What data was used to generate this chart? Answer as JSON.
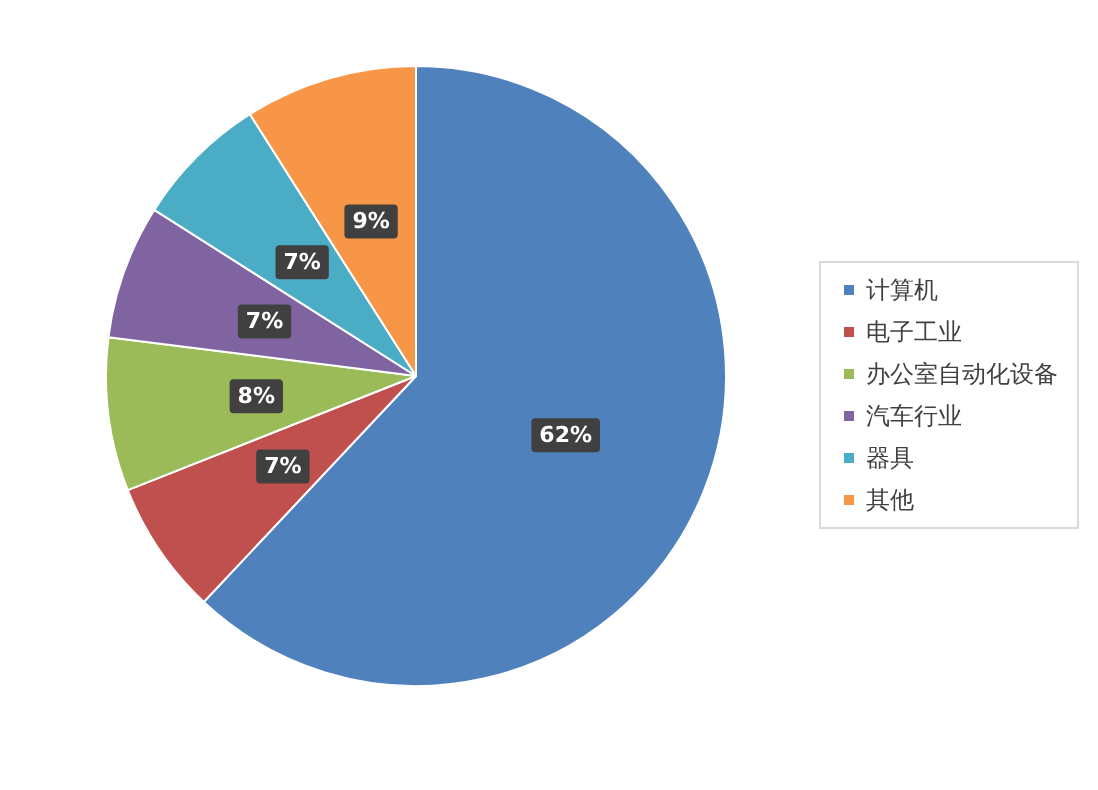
{
  "chart_data": {
    "type": "pie",
    "categories": [
      "计算机",
      "电子工业",
      "办公室自动化设备",
      "汽车行业",
      "器具",
      "其他"
    ],
    "values": [
      62,
      7,
      8,
      7,
      7,
      9
    ],
    "colors": [
      "#4f81bd",
      "#c0504d",
      "#9bbb59",
      "#8064a2",
      "#4bacc6",
      "#f79646"
    ],
    "value_labels": [
      "62%",
      "7%",
      "8%",
      "7%",
      "7%",
      "9%"
    ],
    "legend": "right"
  }
}
